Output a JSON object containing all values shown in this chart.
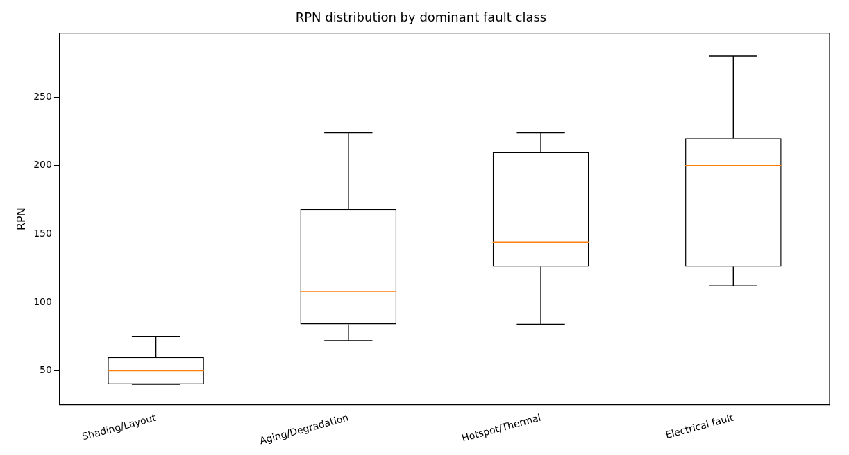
{
  "chart_data": {
    "type": "box",
    "title": "RPN distribution by dominant fault class",
    "ylabel": "RPN",
    "categories": [
      "Shading/Layout",
      "Aging/Degradation",
      "Hotspot/Thermal",
      "Electrical fault"
    ],
    "boxes": [
      {
        "low": 40,
        "q1": 40,
        "median": 50,
        "q3": 60,
        "high": 75
      },
      {
        "low": 72,
        "q1": 84,
        "median": 108,
        "q3": 168,
        "high": 224
      },
      {
        "low": 84,
        "q1": 126,
        "median": 144,
        "q3": 210,
        "high": 224
      },
      {
        "low": 112,
        "q1": 126,
        "median": 200,
        "q3": 220,
        "high": 280
      }
    ],
    "ylim": [
      25,
      297
    ],
    "yticks": [
      50,
      100,
      150,
      200,
      250
    ],
    "grid": false,
    "legend": false
  }
}
